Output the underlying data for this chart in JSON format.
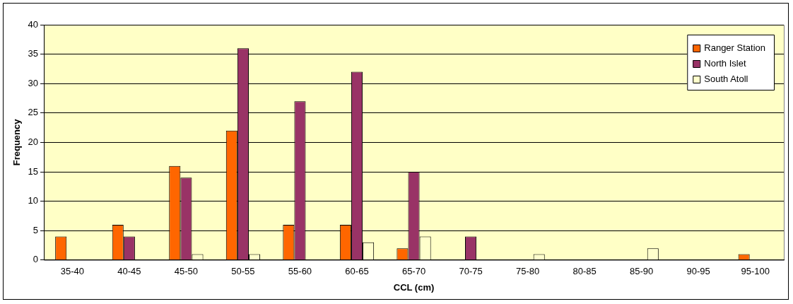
{
  "chart_data": {
    "type": "bar",
    "xlabel": "CCL (cm)",
    "ylabel": "Frequency",
    "categories": [
      "35-40",
      "40-45",
      "45-50",
      "50-55",
      "55-60",
      "60-65",
      "65-70",
      "70-75",
      "75-80",
      "80-85",
      "85-90",
      "90-95",
      "95-100"
    ],
    "series": [
      {
        "name": "Ranger Station",
        "color": "#ff6600",
        "values": [
          4,
          6,
          16,
          22,
          6,
          6,
          2,
          0,
          0,
          0,
          0,
          0,
          1
        ]
      },
      {
        "name": "North Islet",
        "color": "#993366",
        "values": [
          0,
          4,
          14,
          36,
          27,
          32,
          15,
          4,
          0,
          0,
          0,
          0,
          0
        ]
      },
      {
        "name": "South Atoll",
        "color": "#ffffcc",
        "values": [
          0,
          0,
          1,
          1,
          0,
          3,
          4,
          0,
          1,
          0,
          2,
          0,
          0
        ]
      }
    ],
    "ylim": [
      0,
      40
    ],
    "yticks": [
      0,
      5,
      10,
      15,
      20,
      25,
      30,
      35,
      40
    ],
    "grid": "y",
    "legend": "top right"
  }
}
